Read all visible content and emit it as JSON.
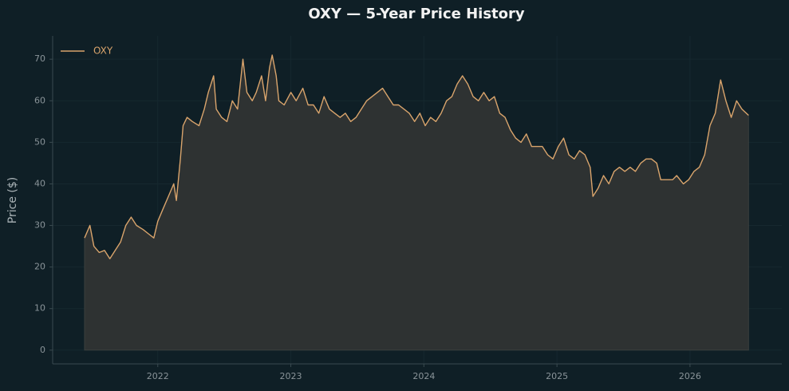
{
  "chart_data": {
    "type": "area-line",
    "title": "OXY — 5-Year Price History",
    "y_label": "Price ($)",
    "series": [
      {
        "name": "OXY",
        "color": "#d9a46c",
        "x": [
          2021.45,
          2021.49,
          2021.52,
          2021.56,
          2021.6,
          2021.64,
          2021.68,
          2021.72,
          2021.76,
          2021.8,
          2021.84,
          2021.89,
          2021.93,
          2021.97,
          2022.0,
          2022.04,
          2022.08,
          2022.12,
          2022.14,
          2022.17,
          2022.19,
          2022.22,
          2022.26,
          2022.31,
          2022.35,
          2022.38,
          2022.42,
          2022.44,
          2022.48,
          2022.52,
          2022.56,
          2022.6,
          2022.64,
          2022.67,
          2022.71,
          2022.74,
          2022.78,
          2022.81,
          2022.84,
          2022.86,
          2022.89,
          2022.91,
          2022.95,
          2023.0,
          2023.04,
          2023.09,
          2023.13,
          2023.17,
          2023.21,
          2023.25,
          2023.29,
          2023.33,
          2023.37,
          2023.41,
          2023.45,
          2023.49,
          2023.53,
          2023.57,
          2023.61,
          2023.65,
          2023.69,
          2023.73,
          2023.77,
          2023.81,
          2023.85,
          2023.89,
          2023.93,
          2023.97,
          2024.01,
          2024.05,
          2024.09,
          2024.13,
          2024.17,
          2024.21,
          2024.25,
          2024.29,
          2024.33,
          2024.37,
          2024.41,
          2024.45,
          2024.49,
          2024.53,
          2024.57,
          2024.61,
          2024.65,
          2024.69,
          2024.73,
          2024.77,
          2024.81,
          2024.85,
          2024.89,
          2024.93,
          2024.97,
          2025.01,
          2025.05,
          2025.09,
          2025.13,
          2025.17,
          2025.21,
          2025.25,
          2025.27,
          2025.31,
          2025.35,
          2025.39,
          2025.43,
          2025.47,
          2025.51,
          2025.55,
          2025.59,
          2025.63,
          2025.67,
          2025.71,
          2025.75,
          2025.78,
          2025.83,
          2025.87,
          2025.9,
          2025.95,
          2025.99,
          2026.03,
          2026.07,
          2026.11,
          2026.15,
          2026.19,
          2026.23,
          2026.27,
          2026.31,
          2026.35,
          2026.39,
          2026.44
        ],
        "values": [
          27,
          30,
          25,
          23.5,
          24,
          22,
          24,
          26,
          30,
          32,
          30,
          29,
          28,
          27,
          31,
          34,
          37,
          40,
          36,
          46,
          54,
          56,
          55,
          54,
          58,
          62,
          66,
          58,
          56,
          55,
          60,
          58,
          70,
          62,
          60,
          62,
          66,
          60,
          68,
          71,
          66,
          60,
          59,
          62,
          60,
          63,
          59,
          59,
          57,
          61,
          58,
          57,
          56,
          57,
          55,
          56,
          58,
          60,
          61,
          62,
          63,
          61,
          59,
          59,
          58,
          57,
          55,
          57,
          54,
          56,
          55,
          57,
          60,
          61,
          64,
          66,
          64,
          61,
          60,
          62,
          60,
          61,
          57,
          56,
          53,
          51,
          50,
          52,
          49,
          49,
          49,
          47,
          46,
          49,
          51,
          47,
          46,
          48,
          47,
          44,
          37,
          39,
          42,
          40,
          43,
          44,
          43,
          44,
          43,
          45,
          46,
          46,
          45,
          41,
          41,
          41,
          42,
          40,
          41,
          43,
          44,
          47,
          54,
          57,
          65,
          60,
          56,
          60,
          58,
          56.5
        ]
      }
    ],
    "xlim": [
      2021.21,
      2026.69
    ],
    "xticks": [
      2022,
      2023,
      2024,
      2025,
      2026
    ],
    "ylim": [
      -3.3,
      75.6
    ],
    "yticks": [
      0,
      10,
      20,
      30,
      40,
      50,
      60,
      70
    ],
    "grid": true,
    "legend": "upper left"
  }
}
